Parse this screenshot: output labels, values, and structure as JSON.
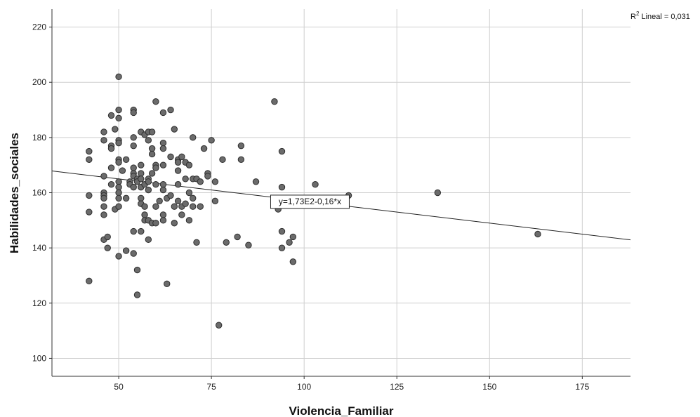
{
  "chart_data": {
    "type": "scatter",
    "xlabel": "Violencia_Familiar",
    "ylabel": "Habilidades_sociales",
    "xlim": [
      32,
      188
    ],
    "ylim": [
      93.5,
      226.5
    ],
    "x_ticks": [
      50,
      75,
      100,
      125,
      150,
      175
    ],
    "y_ticks": [
      100,
      120,
      140,
      160,
      180,
      200,
      220
    ],
    "grid": true,
    "r2_label": "R",
    "r2_sup": "2",
    "r2_text": " Lineal = 0,031",
    "fit": {
      "intercept": 173,
      "slope": -0.16,
      "equation": "y=1,73E2-0,16*x"
    },
    "points": [
      [
        42,
        175
      ],
      [
        42,
        172
      ],
      [
        42,
        159
      ],
      [
        42,
        153
      ],
      [
        42,
        128
      ],
      [
        46,
        182
      ],
      [
        46,
        179
      ],
      [
        46,
        166
      ],
      [
        46,
        160
      ],
      [
        46,
        159
      ],
      [
        46,
        158
      ],
      [
        46,
        155
      ],
      [
        46,
        152
      ],
      [
        46,
        143
      ],
      [
        47,
        144
      ],
      [
        47,
        140
      ],
      [
        48,
        188
      ],
      [
        48,
        177
      ],
      [
        48,
        176
      ],
      [
        48,
        169
      ],
      [
        48,
        163
      ],
      [
        49,
        183
      ],
      [
        49,
        154
      ],
      [
        50,
        202
      ],
      [
        50,
        190
      ],
      [
        50,
        187
      ],
      [
        50,
        179
      ],
      [
        50,
        178
      ],
      [
        50,
        172
      ],
      [
        50,
        171
      ],
      [
        50,
        164
      ],
      [
        50,
        162
      ],
      [
        50,
        160
      ],
      [
        50,
        158
      ],
      [
        50,
        155
      ],
      [
        50,
        137
      ],
      [
        51,
        168
      ],
      [
        52,
        172
      ],
      [
        52,
        158
      ],
      [
        52,
        139
      ],
      [
        53,
        164
      ],
      [
        53,
        163
      ],
      [
        54,
        190
      ],
      [
        54,
        189
      ],
      [
        54,
        180
      ],
      [
        54,
        177
      ],
      [
        54,
        169
      ],
      [
        54,
        167
      ],
      [
        54,
        166
      ],
      [
        54,
        162
      ],
      [
        54,
        146
      ],
      [
        54,
        138
      ],
      [
        55,
        165
      ],
      [
        55,
        164
      ],
      [
        55,
        132
      ],
      [
        55,
        123
      ],
      [
        56,
        182
      ],
      [
        56,
        170
      ],
      [
        56,
        167
      ],
      [
        56,
        165
      ],
      [
        56,
        162
      ],
      [
        56,
        158
      ],
      [
        56,
        156
      ],
      [
        56,
        146
      ],
      [
        57,
        181
      ],
      [
        57,
        163
      ],
      [
        57,
        155
      ],
      [
        57,
        152
      ],
      [
        57,
        150
      ],
      [
        58,
        182
      ],
      [
        58,
        179
      ],
      [
        58,
        165
      ],
      [
        58,
        164
      ],
      [
        58,
        161
      ],
      [
        58,
        150
      ],
      [
        58,
        143
      ],
      [
        59,
        182
      ],
      [
        59,
        176
      ],
      [
        59,
        174
      ],
      [
        59,
        167
      ],
      [
        59,
        149
      ],
      [
        60,
        193
      ],
      [
        60,
        170
      ],
      [
        60,
        169
      ],
      [
        60,
        163
      ],
      [
        60,
        155
      ],
      [
        60,
        149
      ],
      [
        61,
        157
      ],
      [
        62,
        189
      ],
      [
        62,
        178
      ],
      [
        62,
        176
      ],
      [
        62,
        170
      ],
      [
        62,
        163
      ],
      [
        62,
        161
      ],
      [
        62,
        152
      ],
      [
        62,
        150
      ],
      [
        63,
        158
      ],
      [
        63,
        127
      ],
      [
        64,
        190
      ],
      [
        64,
        173
      ],
      [
        64,
        159
      ],
      [
        65,
        183
      ],
      [
        65,
        155
      ],
      [
        65,
        149
      ],
      [
        66,
        172
      ],
      [
        66,
        171
      ],
      [
        66,
        168
      ],
      [
        66,
        163
      ],
      [
        66,
        157
      ],
      [
        67,
        173
      ],
      [
        67,
        155
      ],
      [
        67,
        152
      ],
      [
        68,
        171
      ],
      [
        68,
        165
      ],
      [
        68,
        156
      ],
      [
        69,
        170
      ],
      [
        69,
        160
      ],
      [
        69,
        150
      ],
      [
        70,
        180
      ],
      [
        70,
        165
      ],
      [
        70,
        158
      ],
      [
        70,
        155
      ],
      [
        71,
        165
      ],
      [
        71,
        142
      ],
      [
        72,
        164
      ],
      [
        72,
        155
      ],
      [
        73,
        176
      ],
      [
        74,
        167
      ],
      [
        74,
        166
      ],
      [
        75,
        179
      ],
      [
        76,
        164
      ],
      [
        76,
        157
      ],
      [
        77,
        112
      ],
      [
        78,
        172
      ],
      [
        79,
        142
      ],
      [
        82,
        144
      ],
      [
        83,
        177
      ],
      [
        83,
        172
      ],
      [
        85,
        141
      ],
      [
        87,
        164
      ],
      [
        92,
        193
      ],
      [
        93,
        154
      ],
      [
        94,
        175
      ],
      [
        94,
        162
      ],
      [
        94,
        146
      ],
      [
        94,
        140
      ],
      [
        96,
        142
      ],
      [
        97,
        144
      ],
      [
        97,
        135
      ],
      [
        103,
        163
      ],
      [
        112,
        159
      ],
      [
        136,
        160
      ],
      [
        163,
        145
      ]
    ]
  }
}
